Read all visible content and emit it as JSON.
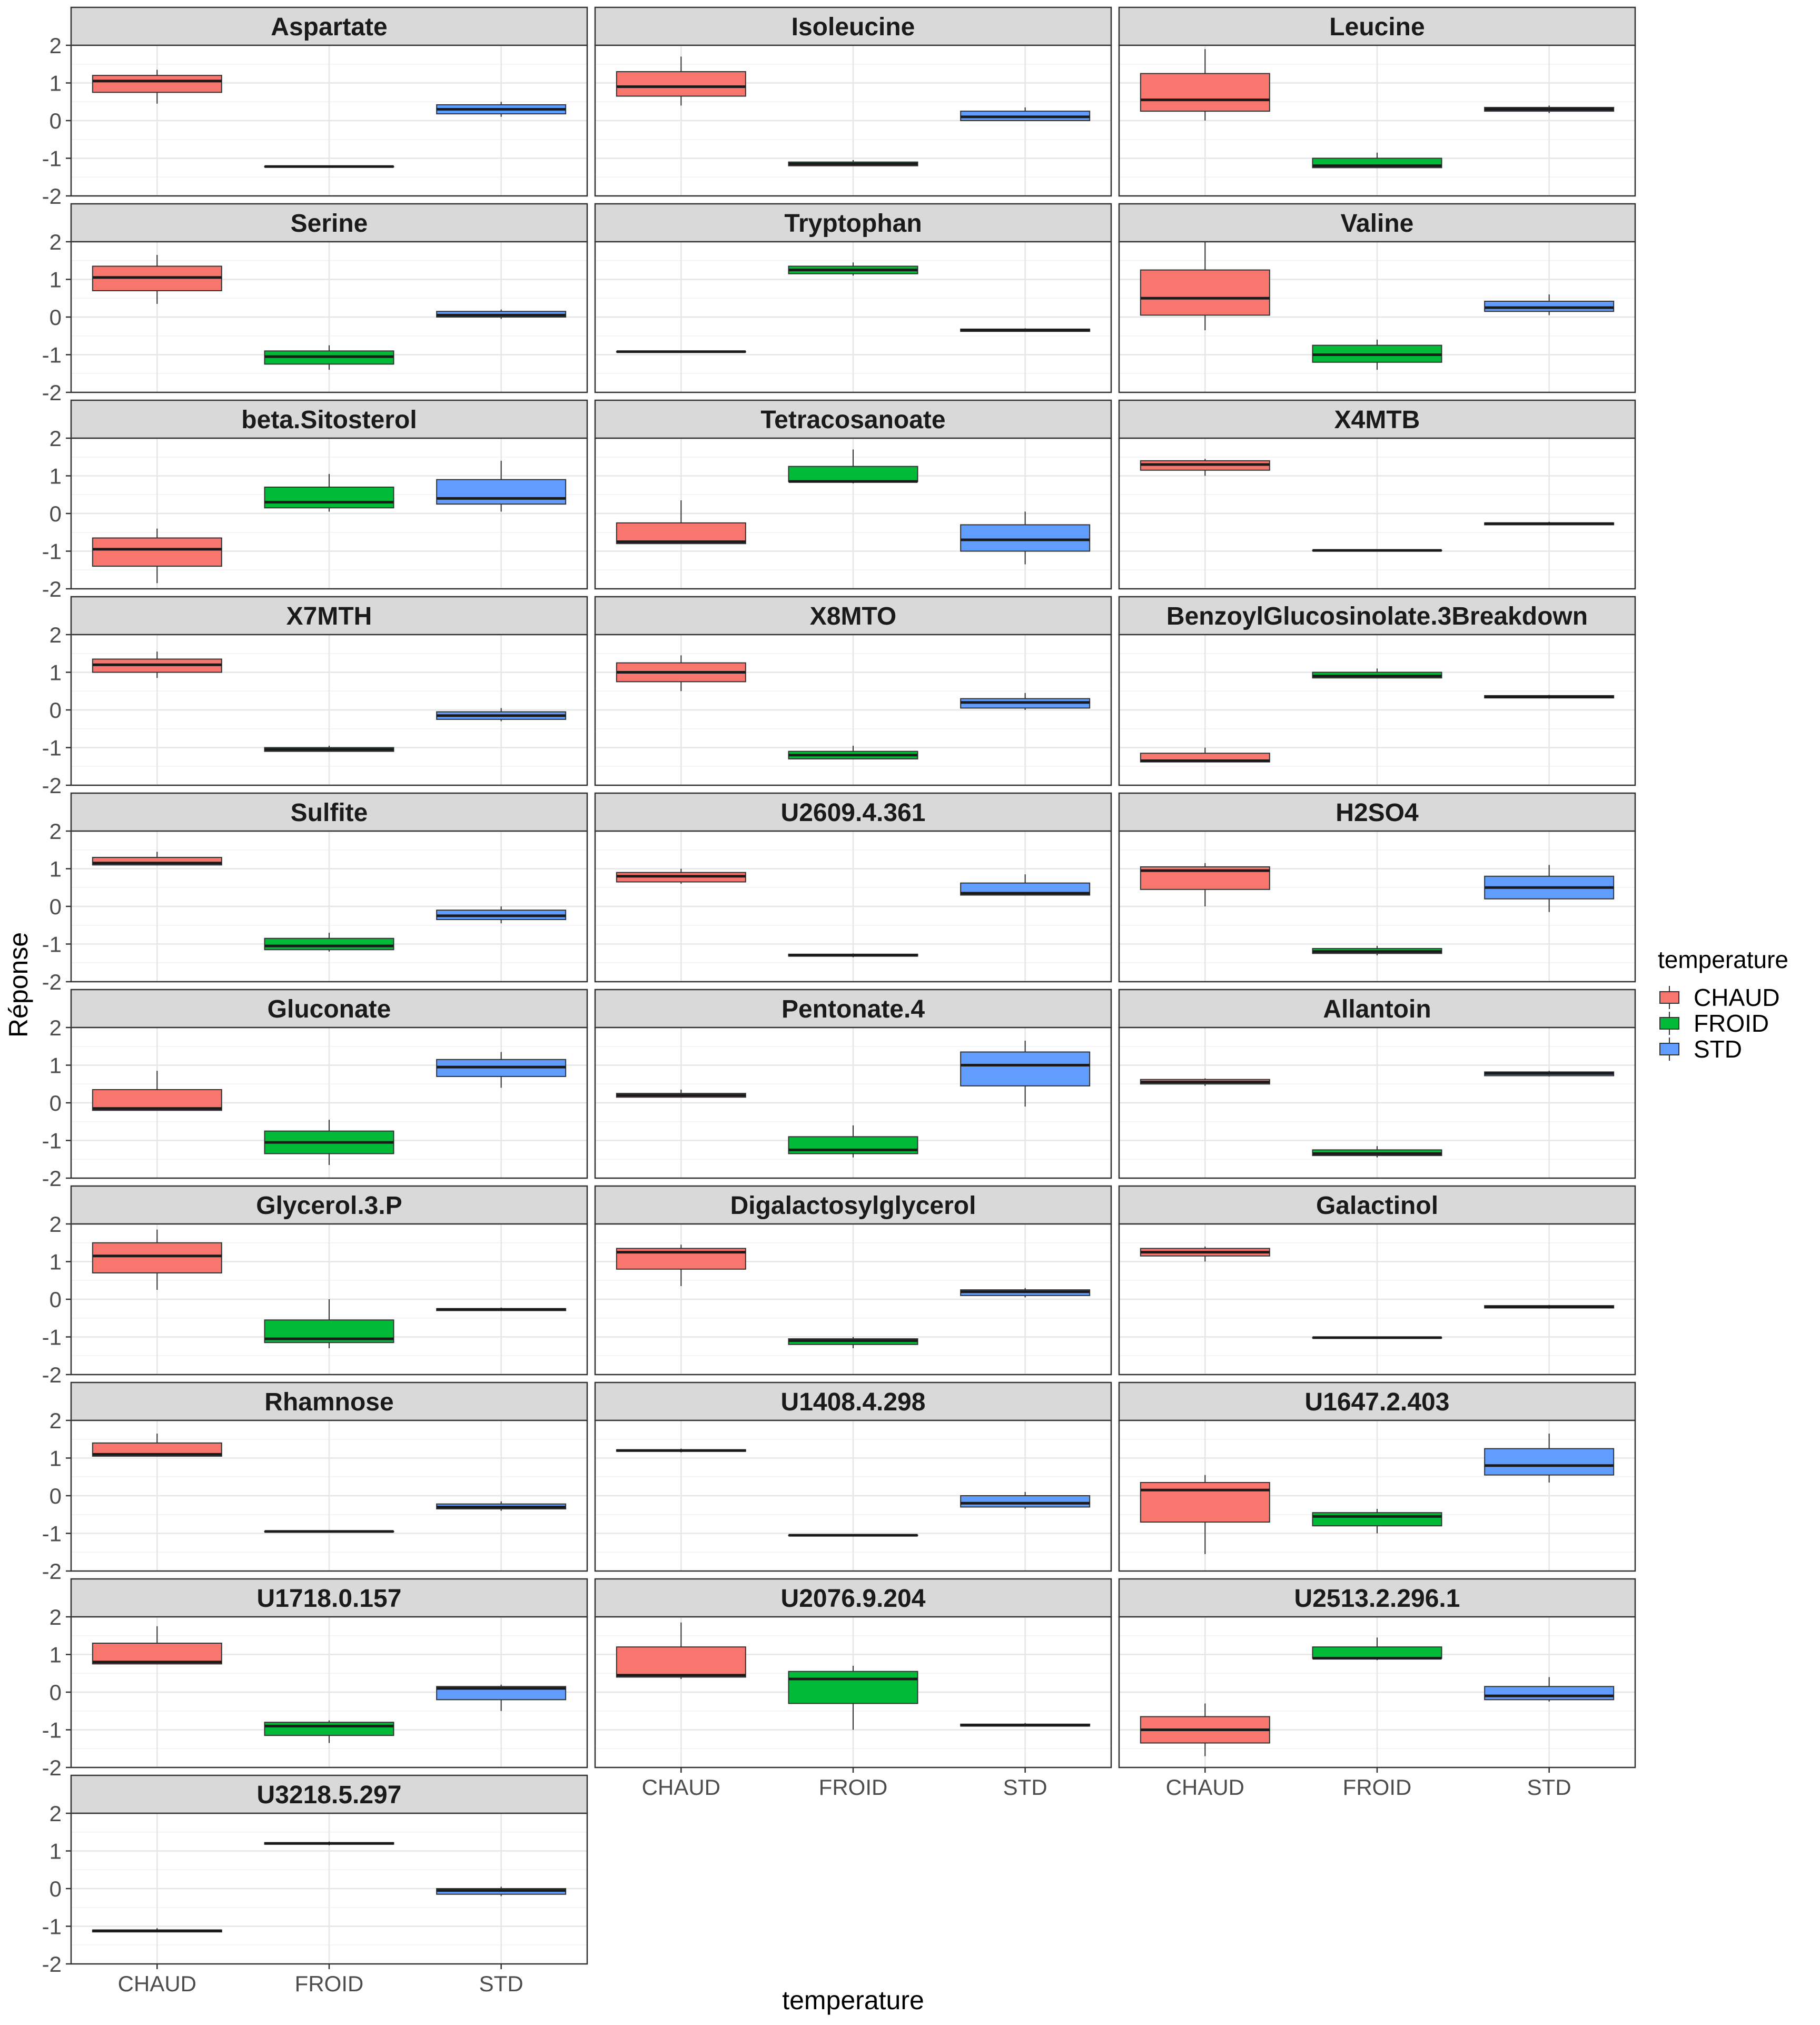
{
  "chart_data": {
    "type": "boxplot",
    "facet_layout": "wrap",
    "ncol": 3,
    "xlabel": "temperature",
    "ylabel": "Réponse",
    "ylim": [
      -2,
      2
    ],
    "yticks": [
      2,
      1,
      0,
      -1,
      -2
    ],
    "categories": [
      "CHAUD",
      "FROID",
      "STD"
    ],
    "grid": true,
    "legend": {
      "title": "temperature",
      "position": "right",
      "entries": [
        {
          "label": "CHAUD",
          "color": "#F8766D"
        },
        {
          "label": "FROID",
          "color": "#00BA38"
        },
        {
          "label": "STD",
          "color": "#619CFF"
        }
      ]
    },
    "facets": [
      {
        "name": "Aspartate",
        "boxes": [
          {
            "category": "CHAUD",
            "min": 0.45,
            "q1": 0.75,
            "median": 1.05,
            "q3": 1.2,
            "max": 1.35
          },
          {
            "category": "FROID",
            "min": -1.22,
            "q1": -1.22,
            "median": -1.22,
            "q3": -1.22,
            "max": -1.22
          },
          {
            "category": "STD",
            "min": 0.1,
            "q1": 0.18,
            "median": 0.3,
            "q3": 0.42,
            "max": 0.5
          }
        ]
      },
      {
        "name": "Isoleucine",
        "boxes": [
          {
            "category": "CHAUD",
            "min": 0.4,
            "q1": 0.65,
            "median": 0.9,
            "q3": 1.3,
            "max": 1.7
          },
          {
            "category": "FROID",
            "min": -1.2,
            "q1": -1.2,
            "median": -1.15,
            "q3": -1.1,
            "max": -1.05
          },
          {
            "category": "STD",
            "min": 0.0,
            "q1": 0.0,
            "median": 0.1,
            "q3": 0.25,
            "max": 0.35
          }
        ]
      },
      {
        "name": "Leucine",
        "boxes": [
          {
            "category": "CHAUD",
            "min": 0.0,
            "q1": 0.25,
            "median": 0.55,
            "q3": 1.25,
            "max": 1.9
          },
          {
            "category": "FROID",
            "min": -1.25,
            "q1": -1.25,
            "median": -1.2,
            "q3": -1.0,
            "max": -0.85
          },
          {
            "category": "STD",
            "min": 0.2,
            "q1": 0.25,
            "median": 0.3,
            "q3": 0.35,
            "max": 0.4
          }
        ]
      },
      {
        "name": "Serine",
        "boxes": [
          {
            "category": "CHAUD",
            "min": 0.35,
            "q1": 0.7,
            "median": 1.05,
            "q3": 1.35,
            "max": 1.65
          },
          {
            "category": "FROID",
            "min": -1.4,
            "q1": -1.25,
            "median": -1.05,
            "q3": -0.9,
            "max": -0.75
          },
          {
            "category": "STD",
            "min": -0.05,
            "q1": 0.0,
            "median": 0.05,
            "q3": 0.15,
            "max": 0.2
          }
        ]
      },
      {
        "name": "Tryptophan",
        "boxes": [
          {
            "category": "CHAUD",
            "min": -0.92,
            "q1": -0.92,
            "median": -0.92,
            "q3": -0.92,
            "max": -0.92
          },
          {
            "category": "FROID",
            "min": 1.1,
            "q1": 1.15,
            "median": 1.25,
            "q3": 1.35,
            "max": 1.45
          },
          {
            "category": "STD",
            "min": -0.38,
            "q1": -0.38,
            "median": -0.35,
            "q3": -0.32,
            "max": -0.3
          }
        ]
      },
      {
        "name": "Valine",
        "boxes": [
          {
            "category": "CHAUD",
            "min": -0.35,
            "q1": 0.05,
            "median": 0.5,
            "q3": 1.25,
            "max": 2.0
          },
          {
            "category": "FROID",
            "min": -1.4,
            "q1": -1.2,
            "median": -1.0,
            "q3": -0.75,
            "max": -0.6
          },
          {
            "category": "STD",
            "min": 0.05,
            "q1": 0.15,
            "median": 0.25,
            "q3": 0.42,
            "max": 0.6
          }
        ]
      },
      {
        "name": "beta.Sitosterol",
        "boxes": [
          {
            "category": "CHAUD",
            "min": -1.85,
            "q1": -1.4,
            "median": -0.95,
            "q3": -0.65,
            "max": -0.4
          },
          {
            "category": "FROID",
            "min": 0.05,
            "q1": 0.15,
            "median": 0.3,
            "q3": 0.7,
            "max": 1.05
          },
          {
            "category": "STD",
            "min": 0.05,
            "q1": 0.25,
            "median": 0.4,
            "q3": 0.9,
            "max": 1.4
          }
        ]
      },
      {
        "name": "Tetracosanoate",
        "boxes": [
          {
            "category": "CHAUD",
            "min": -0.8,
            "q1": -0.8,
            "median": -0.75,
            "q3": -0.25,
            "max": 0.35
          },
          {
            "category": "FROID",
            "min": 0.8,
            "q1": 0.85,
            "median": 0.85,
            "q3": 1.25,
            "max": 1.7
          },
          {
            "category": "STD",
            "min": -1.35,
            "q1": -1.0,
            "median": -0.7,
            "q3": -0.3,
            "max": 0.05
          }
        ]
      },
      {
        "name": "X4MTB",
        "boxes": [
          {
            "category": "CHAUD",
            "min": 1.0,
            "q1": 1.15,
            "median": 1.3,
            "q3": 1.4,
            "max": 1.45
          },
          {
            "category": "FROID",
            "min": -0.98,
            "q1": -0.98,
            "median": -0.98,
            "q3": -0.98,
            "max": -0.98
          },
          {
            "category": "STD",
            "min": -0.3,
            "q1": -0.3,
            "median": -0.27,
            "q3": -0.25,
            "max": -0.22
          }
        ]
      },
      {
        "name": "X7MTH",
        "boxes": [
          {
            "category": "CHAUD",
            "min": 0.85,
            "q1": 1.0,
            "median": 1.2,
            "q3": 1.35,
            "max": 1.55
          },
          {
            "category": "FROID",
            "min": -1.1,
            "q1": -1.1,
            "median": -1.05,
            "q3": -1.0,
            "max": -0.95
          },
          {
            "category": "STD",
            "min": -0.3,
            "q1": -0.25,
            "median": -0.15,
            "q3": -0.05,
            "max": 0.05
          }
        ]
      },
      {
        "name": "X8MTO",
        "boxes": [
          {
            "category": "CHAUD",
            "min": 0.5,
            "q1": 0.75,
            "median": 1.0,
            "q3": 1.25,
            "max": 1.45
          },
          {
            "category": "FROID",
            "min": -1.3,
            "q1": -1.3,
            "median": -1.2,
            "q3": -1.1,
            "max": -0.95
          },
          {
            "category": "STD",
            "min": 0.0,
            "q1": 0.05,
            "median": 0.2,
            "q3": 0.3,
            "max": 0.45
          }
        ]
      },
      {
        "name": "BenzoylGlucosinolate.3Breakdown",
        "boxes": [
          {
            "category": "CHAUD",
            "min": -1.38,
            "q1": -1.38,
            "median": -1.35,
            "q3": -1.15,
            "max": -1.0
          },
          {
            "category": "FROID",
            "min": 0.85,
            "q1": 0.85,
            "median": 0.9,
            "q3": 1.0,
            "max": 1.1
          },
          {
            "category": "STD",
            "min": 0.3,
            "q1": 0.32,
            "median": 0.35,
            "q3": 0.38,
            "max": 0.4
          }
        ]
      },
      {
        "name": "Sulfite",
        "boxes": [
          {
            "category": "CHAUD",
            "min": 1.1,
            "q1": 1.1,
            "median": 1.15,
            "q3": 1.3,
            "max": 1.45
          },
          {
            "category": "FROID",
            "min": -1.2,
            "q1": -1.15,
            "median": -1.05,
            "q3": -0.85,
            "max": -0.7
          },
          {
            "category": "STD",
            "min": -0.45,
            "q1": -0.35,
            "median": -0.25,
            "q3": -0.1,
            "max": 0.0
          }
        ]
      },
      {
        "name": "U2609.4.361",
        "boxes": [
          {
            "category": "CHAUD",
            "min": 0.6,
            "q1": 0.65,
            "median": 0.8,
            "q3": 0.9,
            "max": 1.0
          },
          {
            "category": "FROID",
            "min": -1.35,
            "q1": -1.32,
            "median": -1.3,
            "q3": -1.27,
            "max": -1.25
          },
          {
            "category": "STD",
            "min": 0.3,
            "q1": 0.3,
            "median": 0.35,
            "q3": 0.62,
            "max": 0.85
          }
        ]
      },
      {
        "name": "H2SO4",
        "boxes": [
          {
            "category": "CHAUD",
            "min": 0.0,
            "q1": 0.45,
            "median": 0.95,
            "q3": 1.05,
            "max": 1.15
          },
          {
            "category": "FROID",
            "min": -1.3,
            "q1": -1.25,
            "median": -1.2,
            "q3": -1.12,
            "max": -1.05
          },
          {
            "category": "STD",
            "min": -0.15,
            "q1": 0.2,
            "median": 0.5,
            "q3": 0.8,
            "max": 1.1
          }
        ]
      },
      {
        "name": "Gluconate",
        "boxes": [
          {
            "category": "CHAUD",
            "min": -0.2,
            "q1": -0.2,
            "median": -0.15,
            "q3": 0.35,
            "max": 0.85
          },
          {
            "category": "FROID",
            "min": -1.65,
            "q1": -1.35,
            "median": -1.05,
            "q3": -0.75,
            "max": -0.45
          },
          {
            "category": "STD",
            "min": 0.4,
            "q1": 0.7,
            "median": 0.95,
            "q3": 1.15,
            "max": 1.35
          }
        ]
      },
      {
        "name": "Pentonate.4",
        "boxes": [
          {
            "category": "CHAUD",
            "min": 0.15,
            "q1": 0.15,
            "median": 0.2,
            "q3": 0.25,
            "max": 0.35
          },
          {
            "category": "FROID",
            "min": -1.45,
            "q1": -1.35,
            "median": -1.25,
            "q3": -0.9,
            "max": -0.6
          },
          {
            "category": "STD",
            "min": -0.1,
            "q1": 0.45,
            "median": 1.0,
            "q3": 1.35,
            "max": 1.65
          }
        ]
      },
      {
        "name": "Allantoin",
        "boxes": [
          {
            "category": "CHAUD",
            "min": 0.45,
            "q1": 0.5,
            "median": 0.55,
            "q3": 0.62,
            "max": 0.65
          },
          {
            "category": "FROID",
            "min": -1.45,
            "q1": -1.4,
            "median": -1.35,
            "q3": -1.25,
            "max": -1.15
          },
          {
            "category": "STD",
            "min": 0.7,
            "q1": 0.72,
            "median": 0.78,
            "q3": 0.82,
            "max": 0.85
          }
        ]
      },
      {
        "name": "Glycerol.3.P",
        "boxes": [
          {
            "category": "CHAUD",
            "min": 0.25,
            "q1": 0.7,
            "median": 1.15,
            "q3": 1.5,
            "max": 1.85
          },
          {
            "category": "FROID",
            "min": -1.3,
            "q1": -1.15,
            "median": -1.05,
            "q3": -0.55,
            "max": 0.0
          },
          {
            "category": "STD",
            "min": -0.3,
            "q1": -0.3,
            "median": -0.27,
            "q3": -0.25,
            "max": -0.22
          }
        ]
      },
      {
        "name": "Digalactosylglycerol",
        "boxes": [
          {
            "category": "CHAUD",
            "min": 0.35,
            "q1": 0.8,
            "median": 1.25,
            "q3": 1.35,
            "max": 1.45
          },
          {
            "category": "FROID",
            "min": -1.3,
            "q1": -1.2,
            "median": -1.1,
            "q3": -1.05,
            "max": -1.0
          },
          {
            "category": "STD",
            "min": 0.05,
            "q1": 0.1,
            "median": 0.2,
            "q3": 0.25,
            "max": 0.3
          }
        ]
      },
      {
        "name": "Galactinol",
        "boxes": [
          {
            "category": "CHAUD",
            "min": 1.0,
            "q1": 1.15,
            "median": 1.25,
            "q3": 1.35,
            "max": 1.4
          },
          {
            "category": "FROID",
            "min": -1.02,
            "q1": -1.02,
            "median": -1.02,
            "q3": -1.02,
            "max": -1.02
          },
          {
            "category": "STD",
            "min": -0.25,
            "q1": -0.23,
            "median": -0.2,
            "q3": -0.17,
            "max": -0.15
          }
        ]
      },
      {
        "name": "Rhamnose",
        "boxes": [
          {
            "category": "CHAUD",
            "min": 1.05,
            "q1": 1.05,
            "median": 1.1,
            "q3": 1.4,
            "max": 1.65
          },
          {
            "category": "FROID",
            "min": -0.95,
            "q1": -0.95,
            "median": -0.95,
            "q3": -0.95,
            "max": -0.95
          },
          {
            "category": "STD",
            "min": -0.4,
            "q1": -0.35,
            "median": -0.3,
            "q3": -0.22,
            "max": -0.15
          }
        ]
      },
      {
        "name": "U1408.4.298",
        "boxes": [
          {
            "category": "CHAUD",
            "min": 1.15,
            "q1": 1.18,
            "median": 1.2,
            "q3": 1.22,
            "max": 1.25
          },
          {
            "category": "FROID",
            "min": -1.05,
            "q1": -1.05,
            "median": -1.05,
            "q3": -1.05,
            "max": -1.05
          },
          {
            "category": "STD",
            "min": -0.35,
            "q1": -0.3,
            "median": -0.2,
            "q3": 0.0,
            "max": 0.1
          }
        ]
      },
      {
        "name": "U1647.2.403",
        "boxes": [
          {
            "category": "CHAUD",
            "min": -1.55,
            "q1": -0.7,
            "median": 0.15,
            "q3": 0.35,
            "max": 0.55
          },
          {
            "category": "FROID",
            "min": -1.0,
            "q1": -0.8,
            "median": -0.55,
            "q3": -0.45,
            "max": -0.35
          },
          {
            "category": "STD",
            "min": 0.35,
            "q1": 0.55,
            "median": 0.8,
            "q3": 1.25,
            "max": 1.65
          }
        ]
      },
      {
        "name": "U1718.0.157",
        "boxes": [
          {
            "category": "CHAUD",
            "min": 0.75,
            "q1": 0.75,
            "median": 0.8,
            "q3": 1.3,
            "max": 1.75
          },
          {
            "category": "FROID",
            "min": -1.35,
            "q1": -1.15,
            "median": -0.9,
            "q3": -0.8,
            "max": -0.75
          },
          {
            "category": "STD",
            "min": -0.5,
            "q1": -0.2,
            "median": 0.1,
            "q3": 0.15,
            "max": 0.2
          }
        ]
      },
      {
        "name": "U2076.9.204",
        "boxes": [
          {
            "category": "CHAUD",
            "min": 0.35,
            "q1": 0.4,
            "median": 0.45,
            "q3": 1.2,
            "max": 1.85
          },
          {
            "category": "FROID",
            "min": -1.0,
            "q1": -0.3,
            "median": 0.35,
            "q3": 0.55,
            "max": 0.7
          },
          {
            "category": "STD",
            "min": -0.9,
            "q1": -0.9,
            "median": -0.88,
            "q3": -0.85,
            "max": -0.82
          }
        ]
      },
      {
        "name": "U2513.2.296.1",
        "boxes": [
          {
            "category": "CHAUD",
            "min": -1.7,
            "q1": -1.35,
            "median": -1.0,
            "q3": -0.65,
            "max": -0.3
          },
          {
            "category": "FROID",
            "min": 0.85,
            "q1": 0.9,
            "median": 0.9,
            "q3": 1.2,
            "max": 1.45
          },
          {
            "category": "STD",
            "min": -0.25,
            "q1": -0.2,
            "median": -0.1,
            "q3": 0.15,
            "max": 0.4
          }
        ]
      },
      {
        "name": "U3218.5.297",
        "boxes": [
          {
            "category": "CHAUD",
            "min": -1.15,
            "q1": -1.15,
            "median": -1.12,
            "q3": -1.1,
            "max": -1.05
          },
          {
            "category": "FROID",
            "min": 1.15,
            "q1": 1.18,
            "median": 1.2,
            "q3": 1.22,
            "max": 1.25
          },
          {
            "category": "STD",
            "min": -0.2,
            "q1": -0.15,
            "median": -0.05,
            "q3": 0.0,
            "max": 0.05
          }
        ]
      }
    ]
  }
}
